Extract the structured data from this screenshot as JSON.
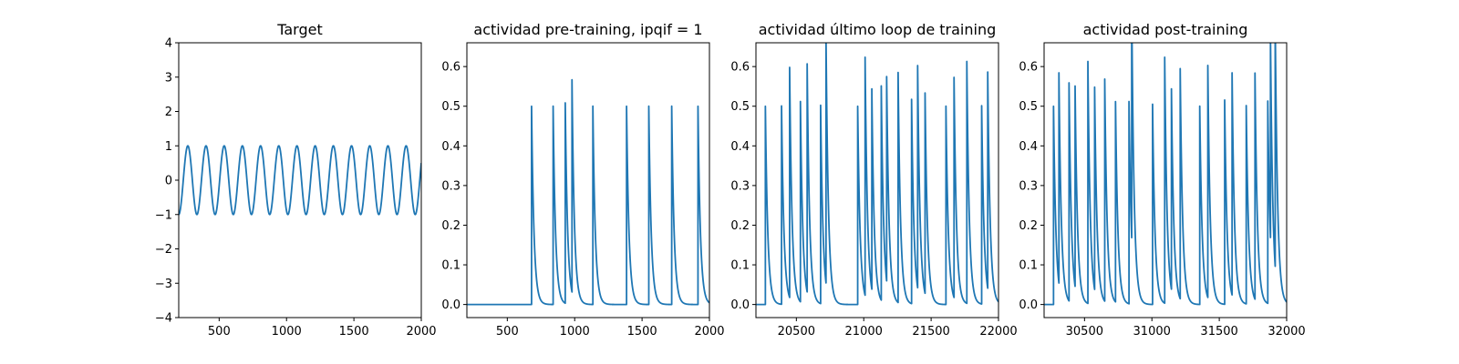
{
  "figure": {
    "background": "#ffffff",
    "line_color": "#1f77b4"
  },
  "chart_data": [
    {
      "type": "line",
      "title": "Target",
      "xlim": [
        200,
        2000
      ],
      "ylim": [
        -4,
        4
      ],
      "xticks": [
        500,
        1000,
        1500,
        2000
      ],
      "yticks": [
        -4,
        -3,
        -2,
        -1,
        0,
        1,
        2,
        3,
        4
      ],
      "ytick_labels": [
        "−4",
        "−3",
        "−2",
        "−1",
        "0",
        "1",
        "2",
        "3",
        "4"
      ],
      "signal": {
        "kind": "sine",
        "amplitude": 1,
        "period": 135,
        "phase_x": 200,
        "start_value": -1
      }
    },
    {
      "type": "line",
      "title": "actividad pre-training, ipqif = 1",
      "xlim": [
        200,
        2000
      ],
      "ylim": [
        -0.033,
        0.66
      ],
      "xticks": [
        500,
        1000,
        1500,
        2000
      ],
      "yticks": [
        0.0,
        0.1,
        0.2,
        0.3,
        0.4,
        0.5,
        0.6
      ],
      "ytick_labels": [
        "0.0",
        "0.1",
        "0.2",
        "0.3",
        "0.4",
        "0.5",
        "0.6"
      ],
      "signal": {
        "kind": "spikes",
        "decay": 18,
        "baseline": 0,
        "spike_times": [
          680,
          840,
          930,
          980,
          1135,
          1385,
          1550,
          1720,
          1915
        ],
        "spike_heights": [
          0.5,
          0.5,
          0.505,
          0.535,
          0.5,
          0.5,
          0.5,
          0.5,
          0.5
        ]
      }
    },
    {
      "type": "line",
      "title": "actividad último loop de training",
      "xlim": [
        20200,
        22000
      ],
      "ylim": [
        -0.033,
        0.66
      ],
      "xticks": [
        20500,
        21000,
        21500,
        22000
      ],
      "yticks": [
        0.0,
        0.1,
        0.2,
        0.3,
        0.4,
        0.5,
        0.6
      ],
      "ytick_labels": [
        "0.0",
        "0.1",
        "0.2",
        "0.3",
        "0.4",
        "0.5",
        "0.6"
      ],
      "signal": {
        "kind": "spikes",
        "decay": 18,
        "baseline": 0,
        "spike_times": [
          20270,
          20390,
          20450,
          20530,
          20580,
          20680,
          20720,
          20955,
          21010,
          21060,
          21130,
          21170,
          21255,
          21355,
          21400,
          21455,
          21610,
          21670,
          21765,
          21875,
          21920
        ],
        "spike_heights": [
          0.5,
          0.5,
          0.58,
          0.505,
          0.575,
          0.5,
          0.62,
          0.5,
          0.6,
          0.505,
          0.54,
          0.515,
          0.58,
          0.515,
          0.56,
          0.505,
          0.5,
          0.555,
          0.61,
          0.5,
          0.545
        ]
      }
    },
    {
      "type": "line",
      "title": "actividad post-training",
      "xlim": [
        30200,
        32000
      ],
      "ylim": [
        -0.033,
        0.66
      ],
      "xticks": [
        30500,
        31000,
        31500,
        32000
      ],
      "yticks": [
        0.0,
        0.1,
        0.2,
        0.3,
        0.4,
        0.5,
        0.6
      ],
      "ytick_labels": [
        "0.0",
        "0.1",
        "0.2",
        "0.3",
        "0.4",
        "0.5",
        "0.6"
      ],
      "signal": {
        "kind": "spikes",
        "decay": 18,
        "baseline": 0,
        "spike_times": [
          30270,
          30310,
          30385,
          30430,
          30525,
          30575,
          30650,
          30730,
          30830,
          30850,
          31005,
          31095,
          31145,
          31210,
          31355,
          31415,
          31540,
          31595,
          31700,
          31765,
          31860,
          31880,
          31915
        ],
        "spike_heights": [
          0.5,
          0.53,
          0.55,
          0.505,
          0.61,
          0.51,
          0.56,
          0.505,
          0.51,
          0.6,
          0.505,
          0.62,
          0.505,
          0.58,
          0.5,
          0.585,
          0.515,
          0.56,
          0.5,
          0.57,
          0.51,
          0.505,
          0.62
        ]
      }
    }
  ]
}
